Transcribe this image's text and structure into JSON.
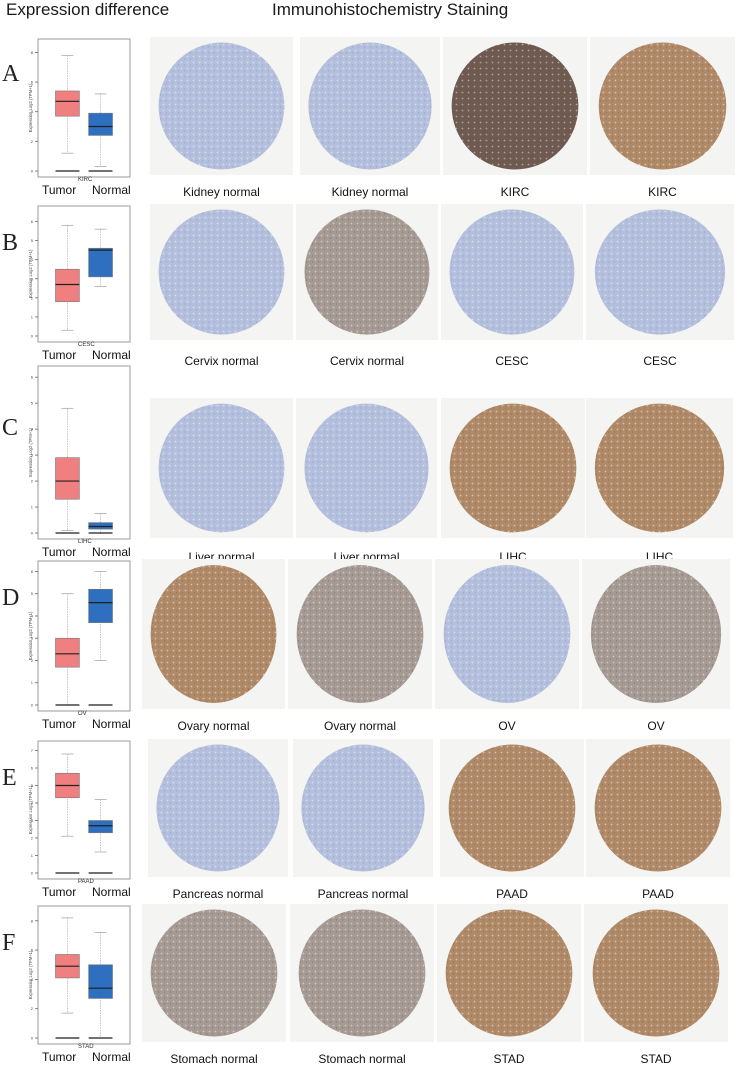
{
  "headers": {
    "left": "Expression difference",
    "right": "Immunohistochemistry  Staining"
  },
  "colors": {
    "tumor_box": "#f08080",
    "normal_box": "#2f6fbf",
    "median_line": "#222222",
    "tissue_blue": "#a9b7d6",
    "tissue_brown": "#a07850",
    "tile_bg": "#f4f4f2"
  },
  "y_axis_label": "Expression Log2 (TPM+1)",
  "x_labels": {
    "tumor": "Tumor",
    "normal": "Normal"
  },
  "panels": [
    {
      "letter": "A",
      "cancer": "KIRC",
      "captions": [
        "Kidney normal",
        "Kidney normal",
        "KIRC",
        "KIRC"
      ],
      "stain": [
        "blue",
        "blue",
        "darkbrown",
        "brown"
      ]
    },
    {
      "letter": "B",
      "cancer": "CESC",
      "captions": [
        "Cervix normal",
        "Cervix  normal",
        "CESC",
        "CESC"
      ],
      "stain": [
        "blue",
        "mixed",
        "blue",
        "blue"
      ]
    },
    {
      "letter": "C",
      "cancer": "LIHC",
      "captions": [
        "Liver normal",
        "Liver normal",
        "LIHC",
        "LIHC"
      ],
      "stain": [
        "blue",
        "blue",
        "brown",
        "brown"
      ]
    },
    {
      "letter": "D",
      "cancer": "OV",
      "captions": [
        "Ovary normal",
        "Ovary normal",
        "OV",
        "OV"
      ],
      "stain": [
        "brown",
        "mixed",
        "blue",
        "mixed"
      ]
    },
    {
      "letter": "E",
      "cancer": "PAAD",
      "captions": [
        "Pancreas normal",
        "Pancreas normal",
        "PAAD",
        "PAAD"
      ],
      "stain": [
        "blue",
        "blue",
        "brown",
        "brown"
      ]
    },
    {
      "letter": "F",
      "cancer": "STAD",
      "captions": [
        "Stomach normal",
        "Stomach normal",
        "STAD",
        "STAD"
      ],
      "stain": [
        "mixed",
        "mixed",
        "brown",
        "brown"
      ]
    }
  ],
  "chart_data": [
    {
      "type": "box",
      "title": "A",
      "xlabel": "KIRC",
      "ylabel": "Expression Log2 (TPM+1)",
      "categories": [
        "Tumor",
        "Normal"
      ],
      "yticks": [
        0,
        2,
        4,
        6,
        8
      ],
      "ylim": [
        0,
        8.5
      ],
      "series": [
        {
          "name": "Tumor",
          "min": 1.2,
          "q1": 3.7,
          "median": 4.7,
          "q3": 5.4,
          "max": 7.8,
          "outlier_floor": 0
        },
        {
          "name": "Normal",
          "min": 0.3,
          "q1": 2.4,
          "median": 3.0,
          "q3": 3.9,
          "max": 5.2,
          "outlier_floor": 0
        }
      ]
    },
    {
      "type": "box",
      "title": "B",
      "xlabel": "CESC",
      "ylabel": "Expression Log2 (TPM+1)",
      "categories": [
        "Tumor",
        "Normal"
      ],
      "yticks": [
        0,
        1,
        2,
        3,
        4,
        5,
        6
      ],
      "ylim": [
        0,
        6.5
      ],
      "series": [
        {
          "name": "Tumor",
          "min": 0.3,
          "q1": 1.8,
          "median": 2.7,
          "q3": 3.5,
          "max": 5.8
        },
        {
          "name": "Normal",
          "min": 2.6,
          "q1": 3.1,
          "median": 4.5,
          "q3": 4.6,
          "max": 5.6
        }
      ]
    },
    {
      "type": "box",
      "title": "C",
      "xlabel": "LIHC",
      "ylabel": "Expression Log2 (TPM+1)",
      "categories": [
        "Tumor",
        "Normal"
      ],
      "yticks": [
        0,
        1,
        2,
        3,
        4,
        5,
        6
      ],
      "ylim": [
        0,
        6.2
      ],
      "series": [
        {
          "name": "Tumor",
          "min": 0.1,
          "q1": 1.3,
          "median": 2.0,
          "q3": 2.9,
          "max": 4.8,
          "outlier_floor": 0
        },
        {
          "name": "Normal",
          "min": 0.0,
          "q1": 0.15,
          "median": 0.25,
          "q3": 0.4,
          "max": 0.75,
          "outlier_floor": 0
        }
      ]
    },
    {
      "type": "box",
      "title": "D",
      "xlabel": "OV",
      "ylabel": "Expression Log2 (TPM+1)",
      "categories": [
        "Tumor",
        "Normal"
      ],
      "yticks": [
        0,
        1,
        2,
        3,
        4,
        5,
        6
      ],
      "ylim": [
        0,
        6.2
      ],
      "series": [
        {
          "name": "Tumor",
          "min": 0.0,
          "q1": 1.7,
          "median": 2.3,
          "q3": 3.0,
          "max": 5.0,
          "outlier_floor": 0
        },
        {
          "name": "Normal",
          "min": 2.0,
          "q1": 3.7,
          "median": 4.6,
          "q3": 5.2,
          "max": 6.0,
          "outlier_floor": 0
        }
      ]
    },
    {
      "type": "box",
      "title": "E",
      "xlabel": "PAAD",
      "ylabel": "Expression Log2 (TPM+1)",
      "categories": [
        "Tumor",
        "Normal"
      ],
      "yticks": [
        0,
        1,
        2,
        3,
        4,
        5,
        6,
        7
      ],
      "ylim": [
        0,
        7.2
      ],
      "series": [
        {
          "name": "Tumor",
          "min": 2.1,
          "q1": 4.3,
          "median": 5.0,
          "q3": 5.7,
          "max": 6.8,
          "outlier_floor": 0
        },
        {
          "name": "Normal",
          "min": 1.2,
          "q1": 2.3,
          "median": 2.7,
          "q3": 3.0,
          "max": 4.2,
          "outlier_floor": 0
        }
      ]
    },
    {
      "type": "box",
      "title": "F",
      "xlabel": "STAD",
      "ylabel": "Expression Log2 (TPM+1)",
      "categories": [
        "Tumor",
        "Normal"
      ],
      "yticks": [
        0,
        2,
        4,
        6,
        8
      ],
      "ylim": [
        0,
        8.6
      ],
      "series": [
        {
          "name": "Tumor",
          "min": 1.7,
          "q1": 4.1,
          "median": 4.9,
          "q3": 5.7,
          "max": 8.2,
          "outlier_floor": 0
        },
        {
          "name": "Normal",
          "min": 0.0,
          "q1": 2.7,
          "median": 3.4,
          "q3": 5.0,
          "max": 7.2,
          "outlier_floor": 0
        }
      ]
    }
  ]
}
